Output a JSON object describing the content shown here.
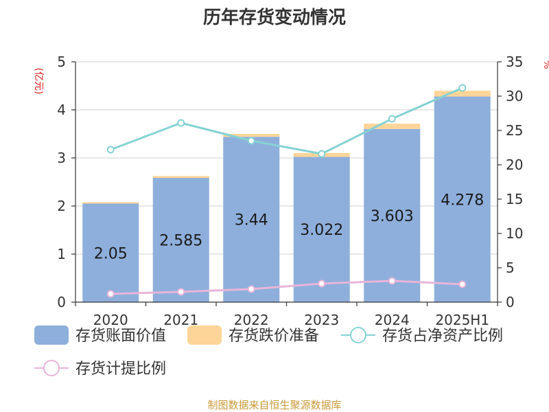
{
  "chart_data": {
    "type": "bar",
    "title": "历年存货变动情况",
    "y_left_unit": "(亿元)",
    "y_right_unit": "%",
    "categories": [
      "2020",
      "2021",
      "2022",
      "2023",
      "2024",
      "2025H1"
    ],
    "ylim_left": [
      0,
      5
    ],
    "ylim_right": [
      0,
      35
    ],
    "yticks_left": [
      0,
      1,
      2,
      3,
      4,
      5
    ],
    "yticks_right": [
      0,
      5,
      10,
      15,
      20,
      25,
      30,
      35
    ],
    "grid": true,
    "legend_position": "bottom",
    "series": [
      {
        "name": "存货账面价值",
        "kind": "bar",
        "axis": "left",
        "color": "#8eafdb",
        "values": [
          2.05,
          2.585,
          3.44,
          3.022,
          3.603,
          4.278
        ],
        "labels": [
          "2.05",
          "2.585",
          "3.44",
          "3.022",
          "3.603",
          "4.278"
        ]
      },
      {
        "name": "存货跌价准备",
        "kind": "bar-stacked",
        "axis": "left",
        "color": "#fdd598",
        "values": [
          0.03,
          0.04,
          0.06,
          0.08,
          0.11,
          0.12
        ]
      },
      {
        "name": "存货占净资产比例",
        "kind": "line",
        "axis": "right",
        "color": "#86d2d3",
        "values": [
          22.2,
          26.1,
          23.5,
          21.6,
          26.7,
          31.2
        ]
      },
      {
        "name": "存货计提比例",
        "kind": "line",
        "axis": "right",
        "color": "#e8b5d8",
        "values": [
          1.2,
          1.5,
          1.9,
          2.7,
          3.1,
          2.6
        ]
      }
    ],
    "source": "制图数据来自恒生聚源数据库"
  }
}
